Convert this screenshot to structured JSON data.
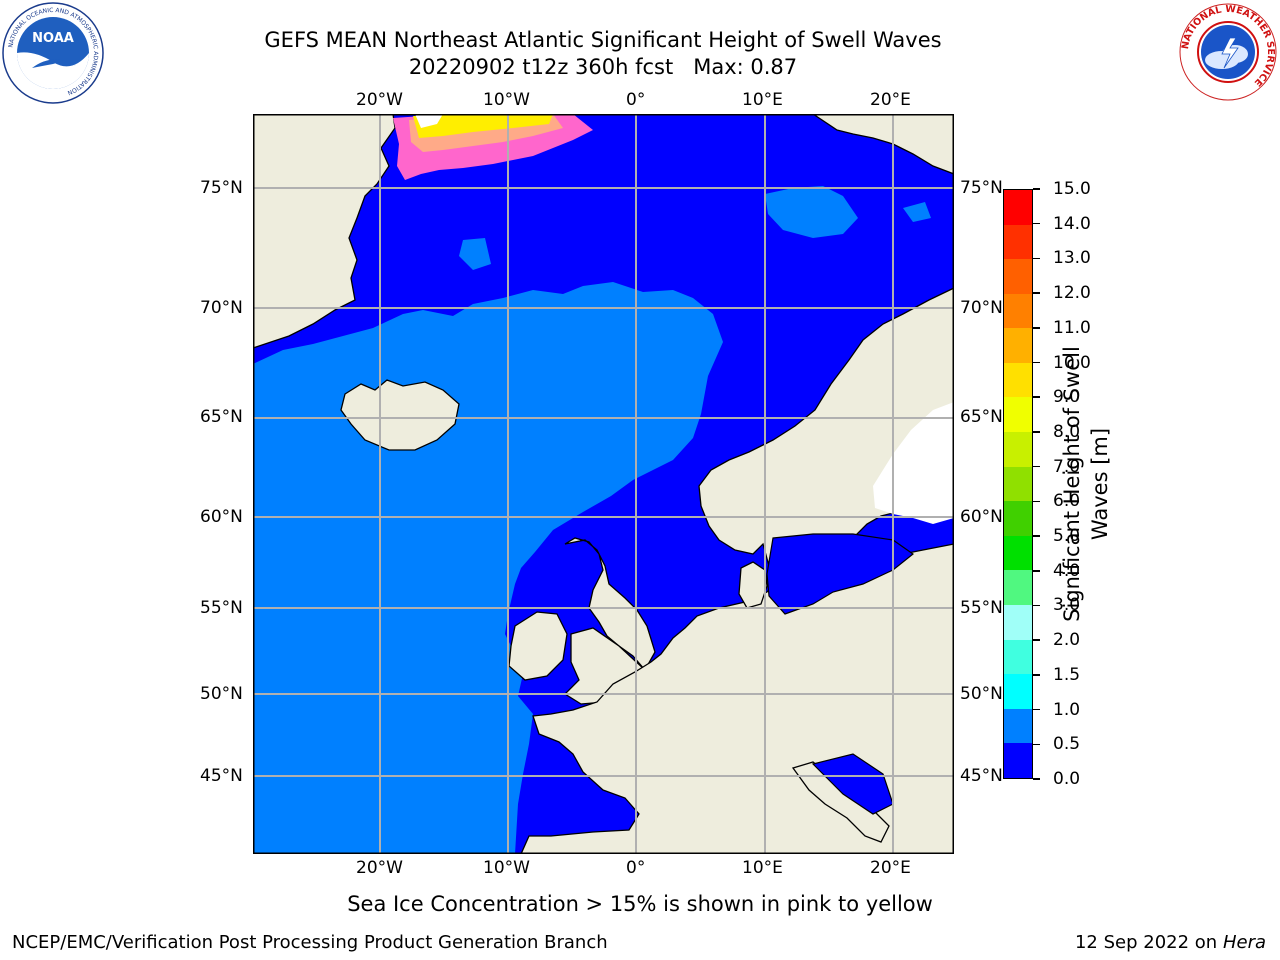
{
  "header": {
    "title_line1": "GEFS MEAN Northeast Atlantic Significant Height of Swell Waves",
    "title_line2": "20220902 t12z 360h fcst   Max: 0.87"
  },
  "logos": {
    "noaa": {
      "name": "NOAA",
      "ring_text": "NATIONAL OCEANIC AND ATMOSPHERIC ADMINISTRATION",
      "bottom_text": "U.S. DEPARTMENT OF COMMERCE"
    },
    "nws": {
      "ring_text": "NATIONAL WEATHER SERVICE"
    }
  },
  "map": {
    "lon_labels": [
      "20°W",
      "10°W",
      "0°",
      "10°E",
      "20°E"
    ],
    "lat_labels": [
      "75°N",
      "70°N",
      "65°N",
      "60°N",
      "55°N",
      "50°N",
      "45°N"
    ],
    "colors": {
      "land": "#eeeddd",
      "sea_low": "#0000ff",
      "sea_mid": "#0080ff",
      "grid": "#b0b0b0",
      "ice_white": "#ffffff"
    }
  },
  "colorbar": {
    "label": "Significant Height of Swell Waves [m]",
    "ticks": [
      "15.0",
      "14.0",
      "13.0",
      "12.0",
      "11.0",
      "10.0",
      "9.0",
      "8.0",
      "7.0",
      "6.0",
      "5.0",
      "4.0",
      "3.0",
      "2.0",
      "1.5",
      "1.0",
      "0.5",
      "0.0"
    ],
    "levels": [
      0,
      0.5,
      1.0,
      1.5,
      2.0,
      3.0,
      4.0,
      5.0,
      6.0,
      7.0,
      8.0,
      9.0,
      10.0,
      11.0,
      12.0,
      13.0,
      14.0,
      15.0
    ],
    "colors": [
      "#0000ff",
      "#0080ff",
      "#00ffff",
      "#40ffe0",
      "#a0fff8",
      "#50f880",
      "#00e000",
      "#40d000",
      "#90e000",
      "#c8f000",
      "#f0ff00",
      "#ffe000",
      "#ffb000",
      "#ff8000",
      "#ff6000",
      "#ff3000",
      "#ff0000"
    ]
  },
  "notes": {
    "ice_note": "Sea Ice Concentration > 15% is shown in pink to yellow"
  },
  "footer": {
    "left": "NCEP/EMC/Verification Post Processing Product Generation Branch",
    "date": "12 Sep 2022 on",
    "host": "Hera"
  }
}
